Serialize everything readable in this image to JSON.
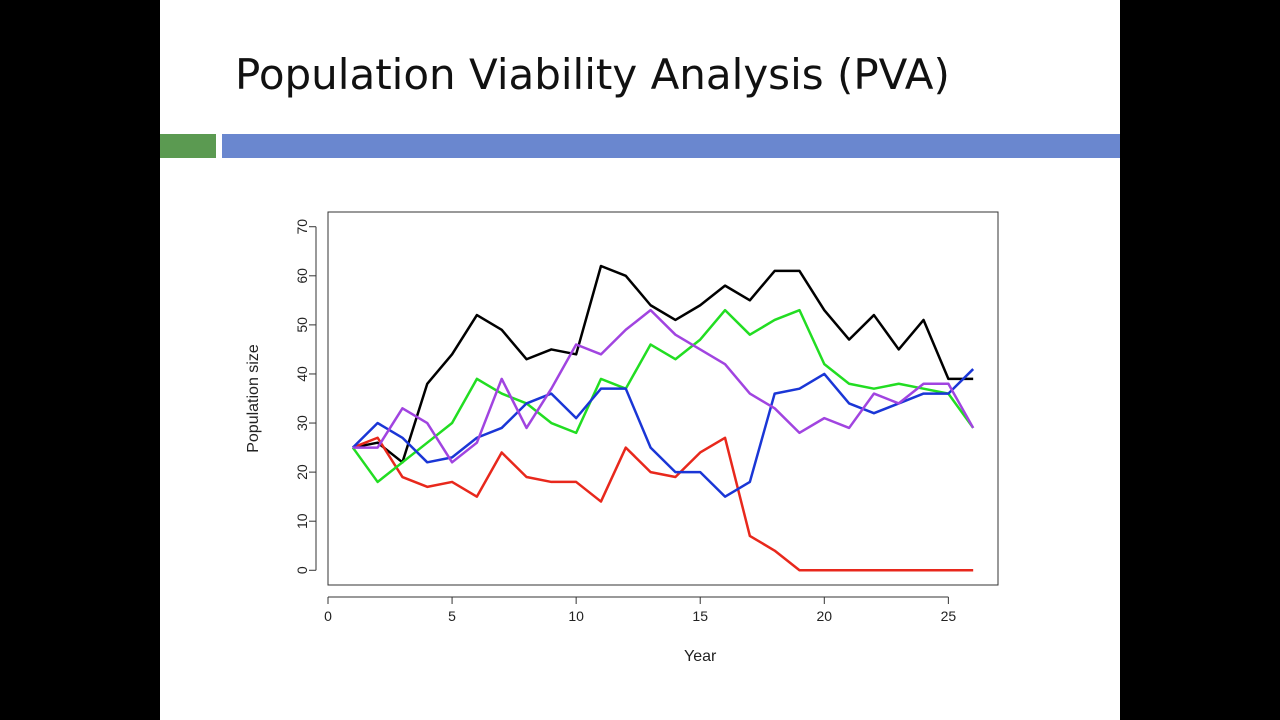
{
  "slide": {
    "title": "Population Viability Analysis (PVA)",
    "accent_green": "#5b9a51",
    "accent_blue": "#6a87cf"
  },
  "chart_data": {
    "type": "line",
    "title": "",
    "xlabel": "Year",
    "ylabel": "Population size",
    "xlim": [
      0,
      27
    ],
    "ylim": [
      -3,
      73
    ],
    "xticks": [
      0,
      5,
      10,
      15,
      20,
      25
    ],
    "yticks": [
      0,
      10,
      20,
      30,
      40,
      50,
      60,
      70
    ],
    "grid": false,
    "legend": "none",
    "x": [
      1,
      2,
      3,
      4,
      5,
      6,
      7,
      8,
      9,
      10,
      11,
      12,
      13,
      14,
      15,
      16,
      17,
      18,
      19,
      20,
      21,
      22,
      23,
      24,
      25,
      26
    ],
    "series": [
      {
        "color": "#000000",
        "values": [
          25,
          26,
          22,
          38,
          44,
          52,
          49,
          43,
          45,
          44,
          62,
          60,
          54,
          51,
          54,
          58,
          55,
          61,
          61,
          53,
          47,
          52,
          45,
          51,
          39,
          39
        ]
      },
      {
        "color": "#e8281c",
        "values": [
          25,
          27,
          19,
          17,
          18,
          15,
          24,
          19,
          18,
          18,
          14,
          25,
          20,
          19,
          24,
          27,
          7,
          4,
          0,
          0,
          0,
          0,
          0,
          0,
          0,
          0
        ]
      },
      {
        "color": "#22dd22",
        "values": [
          25,
          18,
          22,
          26,
          30,
          39,
          36,
          34,
          30,
          28,
          39,
          37,
          46,
          43,
          47,
          53,
          48,
          51,
          53,
          42,
          38,
          37,
          38,
          37,
          36,
          29
        ]
      },
      {
        "color": "#1a36d6",
        "values": [
          25,
          30,
          27,
          22,
          23,
          27,
          29,
          34,
          36,
          31,
          37,
          37,
          25,
          20,
          20,
          15,
          18,
          36,
          37,
          40,
          34,
          32,
          34,
          36,
          36,
          41
        ]
      },
      {
        "color": "#a144e0",
        "values": [
          25,
          25,
          33,
          30,
          22,
          26,
          39,
          29,
          37,
          46,
          44,
          49,
          53,
          48,
          45,
          42,
          36,
          33,
          28,
          31,
          29,
          36,
          34,
          38,
          38,
          29
        ]
      }
    ]
  }
}
